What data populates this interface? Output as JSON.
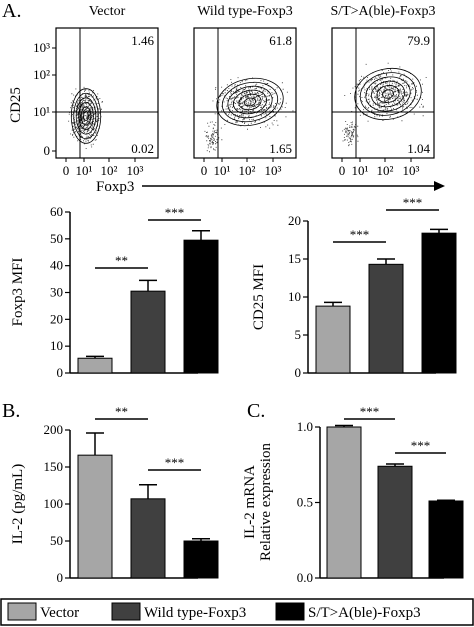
{
  "panel_labels": {
    "a": "A.",
    "b": "B.",
    "c": "C."
  },
  "flow": {
    "y_label": "CD25",
    "x_label": "Foxp3",
    "y_ticks": [
      "10³",
      "10²",
      "10¹",
      "0"
    ],
    "x_ticks": [
      "0",
      "10¹",
      "10²",
      "10³"
    ],
    "plots": [
      {
        "title": "Vector",
        "upper_right": "1.46",
        "lower_right": "0.02"
      },
      {
        "title": "Wild type-Foxp3",
        "upper_right": "61.8",
        "lower_right": "1.65"
      },
      {
        "title": "S/T>A(ble)-Foxp3",
        "upper_right": "79.9",
        "lower_right": "1.04"
      }
    ]
  },
  "colors": {
    "vector": "#a6a6a6",
    "wild_type": "#404040",
    "st_mutant": "#000000"
  },
  "chart_data": [
    {
      "type": "bar",
      "categories": [
        "Vector",
        "Wild type-Foxp3",
        "S/T>A(ble)-Foxp3"
      ],
      "values": [
        5.5,
        30.5,
        49.5
      ],
      "errors": [
        0.7,
        4,
        3.5
      ],
      "ylabel": "Foxp3 MFI",
      "ylim": [
        0,
        60
      ],
      "yticks": [
        "0",
        "10",
        "20",
        "30",
        "40",
        "50",
        "60"
      ],
      "significance": [
        "**",
        "***"
      ]
    },
    {
      "type": "bar",
      "categories": [
        "Vector",
        "Wild type-Foxp3",
        "S/T>A(ble)-Foxp3"
      ],
      "values": [
        8.8,
        14.3,
        18.4
      ],
      "errors": [
        0.5,
        0.7,
        0.5
      ],
      "ylabel": "CD25 MFI",
      "ylim": [
        0,
        20
      ],
      "yticks": [
        "0",
        "5",
        "10",
        "15",
        "20"
      ],
      "significance": [
        "***",
        "***"
      ]
    },
    {
      "type": "bar",
      "categories": [
        "Vector",
        "Wild type-Foxp3",
        "S/T>A(ble)-Foxp3"
      ],
      "values": [
        166,
        107,
        50
      ],
      "errors": [
        30,
        19,
        3
      ],
      "ylabel": "IL-2 (pg/mL)",
      "ylim": [
        0,
        200
      ],
      "yticks": [
        "0",
        "50",
        "100",
        "150",
        "200"
      ],
      "significance": [
        "**",
        "***"
      ]
    },
    {
      "type": "bar",
      "categories": [
        "Vector",
        "Wild type-Foxp3",
        "S/T>A(ble)-Foxp3"
      ],
      "values": [
        1.0,
        0.74,
        0.51
      ],
      "errors": [
        0.01,
        0.015,
        0.005
      ],
      "ylabel": "IL-2 mRNA",
      "ylabel2": "Relative expression",
      "ylim": [
        0,
        1.0
      ],
      "yticks": [
        "0.0",
        "0.5",
        "1.0"
      ],
      "significance": [
        "***",
        "***"
      ]
    }
  ],
  "legend": {
    "items": [
      "Vector",
      "Wild type-Foxp3",
      "S/T>A(ble)-Foxp3"
    ],
    "placement": "bottom"
  }
}
